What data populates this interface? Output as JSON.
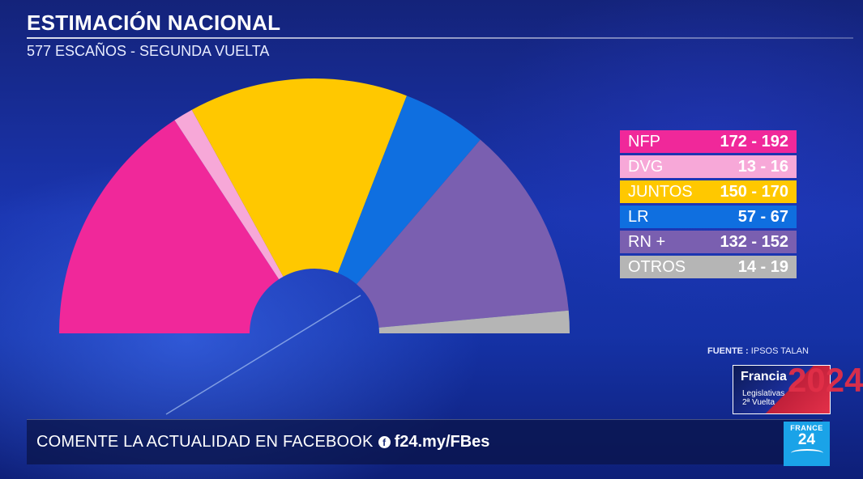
{
  "header": {
    "title": "ESTIMACIÓN NACIONAL",
    "subtitle": "577 ESCAÑOS - SEGUNDA VUELTA"
  },
  "chart_data": {
    "type": "pie",
    "subtype": "hemicycle",
    "total_seats": 577,
    "title": "",
    "series": [
      {
        "name": "NFP",
        "range_label": "172 - 192",
        "low": 172,
        "high": 192,
        "color": "#f0289a"
      },
      {
        "name": "DVG",
        "range_label": "13 - 16",
        "low": 13,
        "high": 16,
        "color": "#f7a8d8"
      },
      {
        "name": "JUNTOS",
        "range_label": "150 - 170",
        "low": 150,
        "high": 170,
        "color": "#ffc800"
      },
      {
        "name": "LR",
        "range_label": "57 - 67",
        "low": 57,
        "high": 67,
        "color": "#0f6fe0"
      },
      {
        "name": "RN +",
        "range_label": "132 - 152",
        "low": 132,
        "high": 152,
        "color": "#7a5fb0"
      },
      {
        "name": "OTROS",
        "range_label": "14 - 19",
        "low": 14,
        "high": 19,
        "color": "#b5b5b5"
      }
    ],
    "legend_placement": "right"
  },
  "source": {
    "label": "FUENTE :",
    "value": "IPSOS TALAN"
  },
  "badge": {
    "title": "Francia",
    "year": "2024",
    "line1": "Legislativas",
    "line2": "2ª Vuelta"
  },
  "ticker": {
    "text": "COMENTE LA ACTUALIDAD EN FACEBOOK",
    "icon": "facebook-icon",
    "link": "f24.my/FBes"
  },
  "logo": {
    "top": "FRANCE",
    "number": "24"
  }
}
